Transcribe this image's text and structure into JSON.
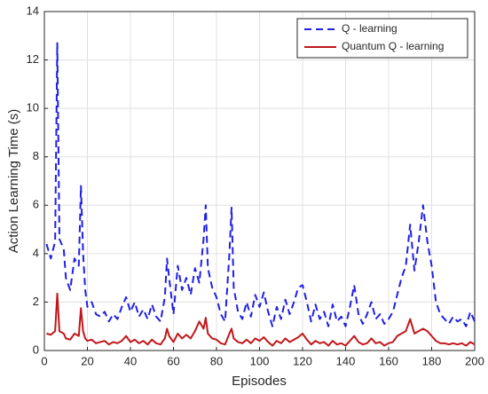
{
  "chart_data": {
    "type": "line",
    "xlabel": "Episodes",
    "ylabel": "Action Learning Time (s)",
    "x": [
      1,
      3,
      5,
      6,
      7,
      9,
      10,
      12,
      14,
      16,
      17,
      18,
      19,
      20,
      22,
      24,
      26,
      28,
      30,
      32,
      34,
      36,
      38,
      40,
      42,
      44,
      46,
      48,
      50,
      52,
      54,
      56,
      57,
      58,
      60,
      62,
      64,
      66,
      68,
      70,
      72,
      74,
      75,
      76,
      78,
      80,
      82,
      84,
      86,
      87,
      88,
      90,
      92,
      94,
      96,
      98,
      100,
      102,
      104,
      106,
      108,
      110,
      112,
      114,
      116,
      118,
      120,
      122,
      124,
      126,
      128,
      130,
      132,
      134,
      136,
      138,
      140,
      142,
      144,
      146,
      148,
      150,
      152,
      154,
      156,
      158,
      160,
      162,
      164,
      166,
      168,
      170,
      172,
      174,
      176,
      178,
      180,
      182,
      184,
      186,
      188,
      190,
      192,
      194,
      196,
      198,
      200
    ],
    "series": [
      {
        "name": "Q - learning",
        "color": "#1f1fe6",
        "dash": true,
        "values": [
          4.4,
          3.8,
          4.5,
          12.7,
          4.6,
          4.2,
          3.0,
          2.5,
          3.8,
          3.5,
          6.8,
          4.0,
          2.5,
          1.8,
          2.0,
          1.5,
          1.4,
          1.6,
          1.2,
          1.5,
          1.3,
          1.8,
          2.2,
          1.6,
          2.0,
          1.4,
          1.7,
          1.3,
          1.9,
          1.4,
          1.2,
          2.2,
          3.8,
          3.0,
          1.5,
          3.5,
          2.5,
          3.0,
          2.3,
          3.4,
          2.8,
          4.6,
          6.0,
          3.4,
          2.6,
          2.2,
          1.5,
          1.2,
          4.0,
          5.9,
          2.6,
          1.6,
          1.3,
          2.0,
          1.4,
          2.3,
          1.8,
          2.4,
          1.6,
          1.0,
          1.8,
          1.3,
          2.1,
          1.5,
          2.0,
          2.6,
          2.7,
          2.0,
          1.2,
          1.9,
          1.3,
          1.6,
          1.0,
          1.9,
          1.2,
          1.4,
          1.0,
          1.8,
          2.7,
          1.5,
          1.1,
          1.5,
          2.0,
          1.3,
          1.5,
          1.1,
          1.3,
          1.6,
          2.3,
          3.0,
          3.5,
          5.2,
          3.3,
          4.5,
          6.0,
          4.5,
          3.5,
          2.0,
          1.5,
          1.3,
          1.1,
          1.4,
          1.2,
          1.3,
          1.0,
          1.6,
          1.2
        ]
      },
      {
        "name": "Quantum Q - learning",
        "color": "#c0171b",
        "dash": false,
        "values": [
          0.7,
          0.65,
          0.8,
          2.35,
          0.8,
          0.7,
          0.5,
          0.45,
          0.7,
          0.6,
          1.75,
          0.8,
          0.5,
          0.4,
          0.45,
          0.3,
          0.35,
          0.4,
          0.25,
          0.35,
          0.3,
          0.4,
          0.6,
          0.35,
          0.45,
          0.3,
          0.4,
          0.25,
          0.45,
          0.3,
          0.25,
          0.5,
          0.9,
          0.6,
          0.35,
          0.7,
          0.5,
          0.65,
          0.5,
          0.8,
          1.2,
          0.9,
          1.35,
          0.7,
          0.5,
          0.45,
          0.3,
          0.25,
          0.7,
          0.9,
          0.5,
          0.35,
          0.3,
          0.45,
          0.3,
          0.5,
          0.4,
          0.55,
          0.35,
          0.2,
          0.4,
          0.3,
          0.5,
          0.35,
          0.45,
          0.55,
          0.7,
          0.45,
          0.25,
          0.4,
          0.3,
          0.35,
          0.2,
          0.4,
          0.25,
          0.3,
          0.2,
          0.4,
          0.6,
          0.35,
          0.25,
          0.3,
          0.5,
          0.3,
          0.35,
          0.2,
          0.3,
          0.35,
          0.6,
          0.7,
          0.8,
          1.3,
          0.7,
          0.8,
          0.9,
          0.8,
          0.6,
          0.4,
          0.3,
          0.3,
          0.25,
          0.3,
          0.25,
          0.3,
          0.2,
          0.35,
          0.25
        ]
      }
    ],
    "xlim": [
      0,
      200
    ],
    "xticks": [
      0,
      20,
      40,
      60,
      80,
      100,
      120,
      140,
      160,
      180,
      200
    ],
    "ylim": [
      0,
      14
    ],
    "yticks": [
      0,
      2,
      4,
      6,
      8,
      10,
      12,
      14
    ],
    "grid": true,
    "legend": "top-right"
  }
}
